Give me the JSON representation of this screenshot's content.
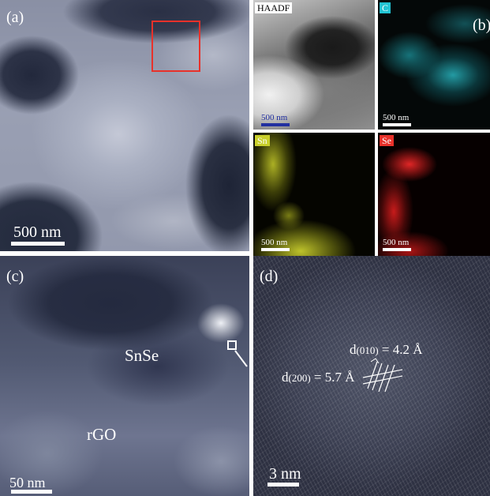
{
  "panels": {
    "a": {
      "label": "(a)",
      "scalebar": "500 nm"
    },
    "b": {
      "label": "(b)",
      "maps": [
        {
          "tag": "HAADF",
          "scalebar": "500 nm",
          "tag_color": "#ffffff",
          "tag_text_color": "#000000",
          "scalebar_color": "#2230a0"
        },
        {
          "tag": "C",
          "scalebar": "500 nm",
          "tag_color": "#22c3d3",
          "tag_text_color": "#ffffff",
          "scalebar_color": "#ffffff"
        },
        {
          "tag": "Sn",
          "scalebar": "500 nm",
          "tag_color": "#c9cf2a",
          "tag_text_color": "#ffffff",
          "scalebar_color": "#ffffff"
        },
        {
          "tag": "Se",
          "scalebar": "500 nm",
          "tag_color": "#e8312a",
          "tag_text_color": "#ffffff",
          "scalebar_color": "#ffffff"
        }
      ]
    },
    "c": {
      "label": "(c)",
      "scalebar": "50 nm",
      "annotations": [
        "SnSe",
        "rGO"
      ]
    },
    "d": {
      "label": "(d)",
      "scalebar": "3 nm",
      "d010": {
        "prefix": "d",
        "sub": "(010)",
        "value": " = 4.2 Å"
      },
      "d200": {
        "prefix": "d",
        "sub": "(200)",
        "value": " = 5.7 Å"
      }
    }
  },
  "colors": {
    "highlight_box": "#e8312a"
  }
}
